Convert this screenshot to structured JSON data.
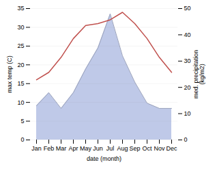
{
  "chart_data": {
    "type": "line",
    "categories": [
      "Jan",
      "Feb",
      "Mar",
      "Apr",
      "May",
      "Jun",
      "Jul",
      "Aug",
      "Sep",
      "Oct",
      "Nov",
      "Dec"
    ],
    "series": [
      {
        "type": "area",
        "axis": "y2",
        "color": "#bfc9e8",
        "values": [
          13,
          18,
          12,
          18,
          27,
          35,
          48,
          32,
          22,
          14,
          12,
          12
        ]
      },
      {
        "type": "line",
        "color": "#c0504d",
        "values": [
          16,
          18,
          22,
          27,
          30.5,
          31,
          32,
          34,
          31,
          27,
          22,
          18
        ]
      }
    ],
    "xlabel": "date (month)",
    "ylabel": "max temp (C)",
    "y2label": "med. precipitation\n(kg/m2)",
    "ylim": [
      0,
      35
    ],
    "yticks": [
      0,
      5,
      10,
      15,
      20,
      25,
      30,
      35
    ],
    "y2lim": [
      0,
      50
    ],
    "y2ticks": [
      0,
      10,
      20,
      30,
      40,
      50
    ],
    "grid": true
  }
}
